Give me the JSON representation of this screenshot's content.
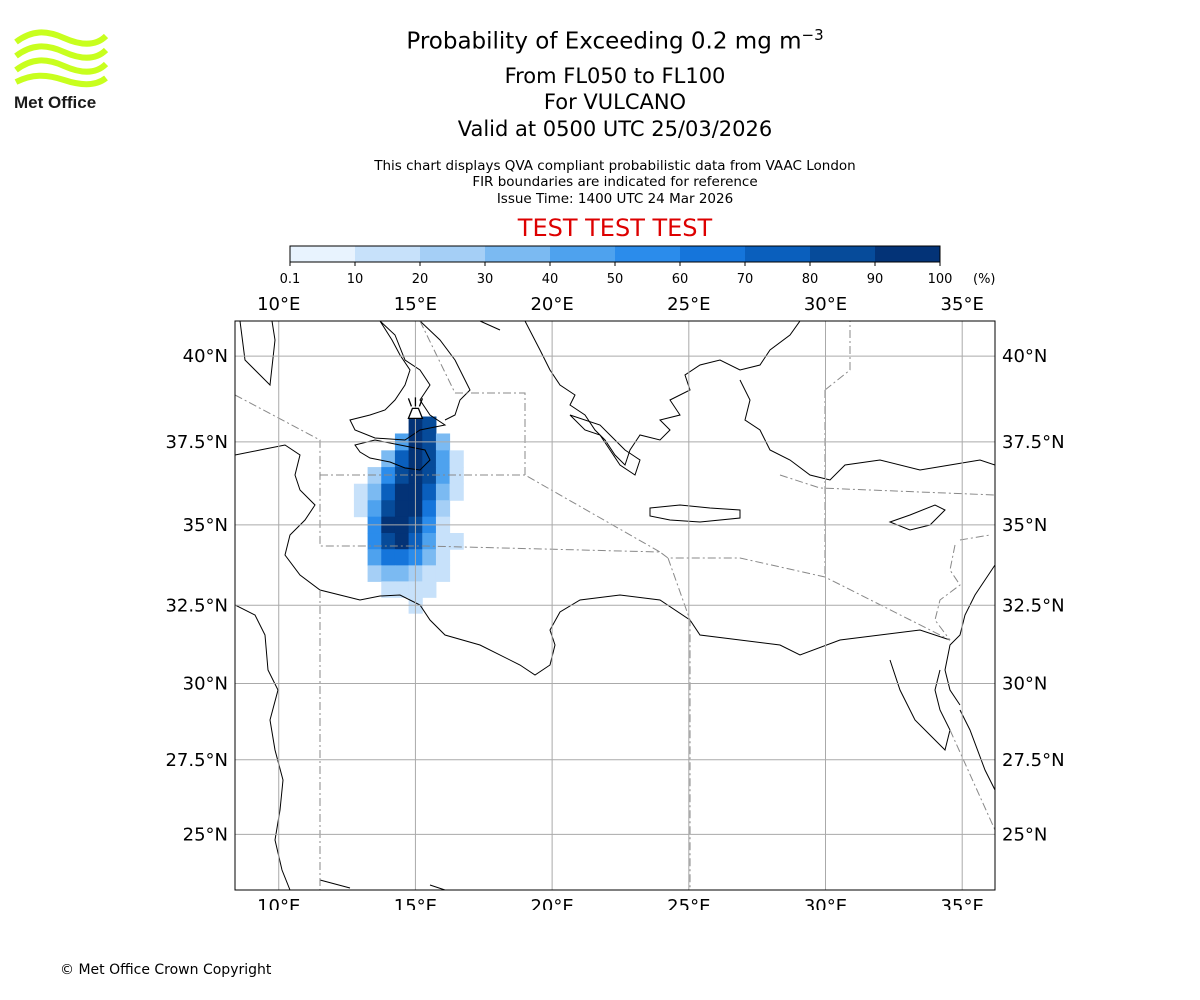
{
  "header": {
    "title": "Probability of Exceeding 0.2 mg m",
    "title_superscript": "−3",
    "levels": "From FL050 to FL100",
    "volcano": "For VULCANO",
    "valid": "Valid at 0500 UTC 25/03/2026"
  },
  "notes": {
    "line1": "This chart displays QVA compliant probabilistic data from VAAC London",
    "line2": "FIR boundaries are indicated for reference",
    "line3": "Issue Time: 1400 UTC 24 Mar 2026"
  },
  "test_banner": {
    "text": "TEST TEST TEST",
    "color": "#dd0000"
  },
  "logo": {
    "text": "Met Office",
    "icon": "met-office-waves-logo",
    "color": "#c8ff1e"
  },
  "colorbar": {
    "ticks": [
      "0.1",
      "10",
      "20",
      "30",
      "40",
      "50",
      "60",
      "70",
      "80",
      "90",
      "100"
    ],
    "unit": "(%)",
    "colors": [
      "#e8f3fe",
      "#c7e1fa",
      "#a5cff6",
      "#7bbaf2",
      "#4ea2ee",
      "#2b8ceb",
      "#1575db",
      "#0a5fbd",
      "#064b9a",
      "#033377"
    ]
  },
  "map": {
    "lon_range": [
      8.4,
      36.2
    ],
    "lat_range": [
      23.1,
      41.0
    ],
    "lon_ticks": [
      "10°E",
      "15°E",
      "20°E",
      "25°E",
      "30°E",
      "35°E"
    ],
    "lat_ticks": [
      "40°N",
      "37.5°N",
      "35°N",
      "32.5°N",
      "30°N",
      "27.5°N",
      "25°N"
    ],
    "volcano_marker": {
      "icon": "volcano-icon",
      "lon": 15.0,
      "lat": 38.4
    },
    "plume": [
      {
        "lon": 15.0,
        "lat": 38.0,
        "p": 90
      },
      {
        "lon": 15.5,
        "lat": 38.0,
        "p": 80
      },
      {
        "lon": 14.5,
        "lat": 37.5,
        "p": 40
      },
      {
        "lon": 15.0,
        "lat": 37.5,
        "p": 90
      },
      {
        "lon": 15.5,
        "lat": 37.5,
        "p": 80
      },
      {
        "lon": 16.0,
        "lat": 37.5,
        "p": 30
      },
      {
        "lon": 14.0,
        "lat": 37.0,
        "p": 30
      },
      {
        "lon": 14.5,
        "lat": 37.0,
        "p": 70
      },
      {
        "lon": 15.0,
        "lat": 37.0,
        "p": 90
      },
      {
        "lon": 15.5,
        "lat": 37.0,
        "p": 80
      },
      {
        "lon": 16.0,
        "lat": 37.0,
        "p": 40
      },
      {
        "lon": 16.5,
        "lat": 37.0,
        "p": 10
      },
      {
        "lon": 13.5,
        "lat": 36.5,
        "p": 20
      },
      {
        "lon": 14.0,
        "lat": 36.5,
        "p": 50
      },
      {
        "lon": 14.5,
        "lat": 36.5,
        "p": 80
      },
      {
        "lon": 15.0,
        "lat": 36.5,
        "p": 90
      },
      {
        "lon": 15.5,
        "lat": 36.5,
        "p": 80
      },
      {
        "lon": 16.0,
        "lat": 36.5,
        "p": 40
      },
      {
        "lon": 16.5,
        "lat": 36.5,
        "p": 10
      },
      {
        "lon": 13.0,
        "lat": 36.0,
        "p": 10
      },
      {
        "lon": 13.5,
        "lat": 36.0,
        "p": 30
      },
      {
        "lon": 14.0,
        "lat": 36.0,
        "p": 70
      },
      {
        "lon": 14.5,
        "lat": 36.0,
        "p": 90
      },
      {
        "lon": 15.0,
        "lat": 36.0,
        "p": 90
      },
      {
        "lon": 15.5,
        "lat": 36.0,
        "p": 70
      },
      {
        "lon": 16.0,
        "lat": 36.0,
        "p": 30
      },
      {
        "lon": 16.5,
        "lat": 36.0,
        "p": 10
      },
      {
        "lon": 13.0,
        "lat": 35.5,
        "p": 10
      },
      {
        "lon": 13.5,
        "lat": 35.5,
        "p": 40
      },
      {
        "lon": 14.0,
        "lat": 35.5,
        "p": 80
      },
      {
        "lon": 14.5,
        "lat": 35.5,
        "p": 90
      },
      {
        "lon": 15.0,
        "lat": 35.5,
        "p": 90
      },
      {
        "lon": 15.5,
        "lat": 35.5,
        "p": 60
      },
      {
        "lon": 16.0,
        "lat": 35.5,
        "p": 20
      },
      {
        "lon": 13.5,
        "lat": 35.0,
        "p": 50
      },
      {
        "lon": 14.0,
        "lat": 35.0,
        "p": 90
      },
      {
        "lon": 14.5,
        "lat": 35.0,
        "p": 90
      },
      {
        "lon": 15.0,
        "lat": 35.0,
        "p": 80
      },
      {
        "lon": 15.5,
        "lat": 35.0,
        "p": 50
      },
      {
        "lon": 16.0,
        "lat": 35.0,
        "p": 10
      },
      {
        "lon": 13.5,
        "lat": 34.5,
        "p": 50
      },
      {
        "lon": 14.0,
        "lat": 34.5,
        "p": 80
      },
      {
        "lon": 14.5,
        "lat": 34.5,
        "p": 90
      },
      {
        "lon": 15.0,
        "lat": 34.5,
        "p": 70
      },
      {
        "lon": 15.5,
        "lat": 34.5,
        "p": 40
      },
      {
        "lon": 16.0,
        "lat": 34.5,
        "p": 10
      },
      {
        "lon": 16.5,
        "lat": 34.5,
        "p": 10
      },
      {
        "lon": 13.5,
        "lat": 34.0,
        "p": 40
      },
      {
        "lon": 14.0,
        "lat": 34.0,
        "p": 60
      },
      {
        "lon": 14.5,
        "lat": 34.0,
        "p": 60
      },
      {
        "lon": 15.0,
        "lat": 34.0,
        "p": 50
      },
      {
        "lon": 15.5,
        "lat": 34.0,
        "p": 30
      },
      {
        "lon": 16.0,
        "lat": 34.0,
        "p": 10
      },
      {
        "lon": 13.5,
        "lat": 33.5,
        "p": 20
      },
      {
        "lon": 14.0,
        "lat": 33.5,
        "p": 30
      },
      {
        "lon": 14.5,
        "lat": 33.5,
        "p": 30
      },
      {
        "lon": 15.0,
        "lat": 33.5,
        "p": 20
      },
      {
        "lon": 15.5,
        "lat": 33.5,
        "p": 10
      },
      {
        "lon": 16.0,
        "lat": 33.5,
        "p": 10
      },
      {
        "lon": 14.0,
        "lat": 33.0,
        "p": 10
      },
      {
        "lon": 14.5,
        "lat": 33.0,
        "p": 10
      },
      {
        "lon": 15.0,
        "lat": 33.0,
        "p": 10
      },
      {
        "lon": 15.5,
        "lat": 33.0,
        "p": 10
      },
      {
        "lon": 15.0,
        "lat": 32.5,
        "p": 10
      }
    ]
  },
  "footer": {
    "copyright": "© Met Office Crown Copyright"
  }
}
